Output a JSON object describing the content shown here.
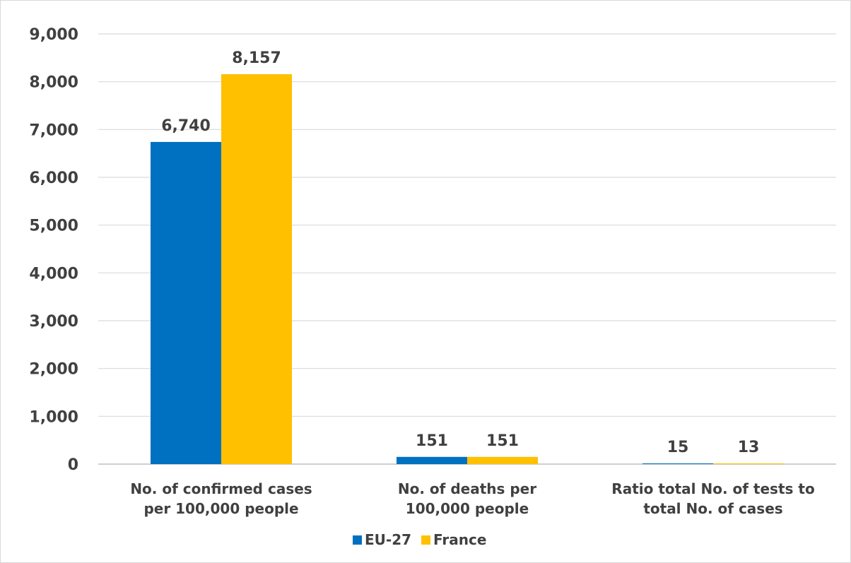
{
  "chart_data": {
    "type": "bar",
    "title": "",
    "xlabel": "",
    "ylabel": "",
    "ylim": [
      0,
      9000
    ],
    "y_ticks": [
      "0",
      "1,000",
      "2,000",
      "3,000",
      "4,000",
      "5,000",
      "6,000",
      "7,000",
      "8,000",
      "9,000"
    ],
    "y_tick_values": [
      0,
      1000,
      2000,
      3000,
      4000,
      5000,
      6000,
      7000,
      8000,
      9000
    ],
    "grid": true,
    "legend_position": "bottom",
    "categories": [
      [
        "No. of confirmed cases",
        "per 100,000 people"
      ],
      [
        "No. of deaths per",
        "100,000 people"
      ],
      [
        "Ratio total No. of tests to",
        "total No. of cases"
      ]
    ],
    "series": [
      {
        "name": "EU-27",
        "color": "#0070c0",
        "values": [
          6740,
          151,
          15
        ],
        "labels": [
          "6,740",
          "151",
          "15"
        ]
      },
      {
        "name": "France",
        "color": "#ffc000",
        "values": [
          8157,
          151,
          13
        ],
        "labels": [
          "8,157",
          "151",
          "13"
        ]
      }
    ]
  }
}
